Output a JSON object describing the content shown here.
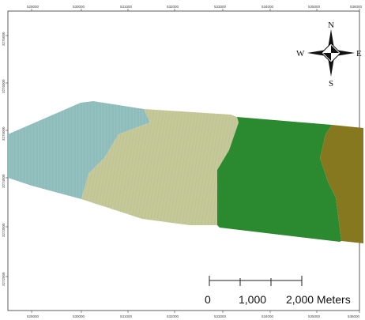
{
  "map": {
    "top_axis_labels": [
      "529000",
      "530000",
      "531000",
      "532000",
      "533000",
      "534000",
      "535000",
      "536000"
    ],
    "bottom_axis_labels": [
      "529000",
      "530000",
      "531000",
      "532000",
      "533000",
      "534000",
      "535000",
      "536000"
    ],
    "left_axis_labels": [
      "3275000",
      "3276000",
      "3275000",
      "3274000",
      "3273000",
      "3272000"
    ],
    "compass": {
      "north": "N",
      "south": "S",
      "east": "E",
      "west": "W"
    },
    "scale_bar": {
      "labels": [
        "0",
        "1,000",
        "2,000 Meters"
      ]
    },
    "zone_colors": {
      "teal": "#8fbcbc",
      "light_olive": "#c5c99a",
      "green": "#2b8a2f",
      "olive": "#85781e",
      "background": "#ffffff",
      "frame": "#333333"
    }
  }
}
